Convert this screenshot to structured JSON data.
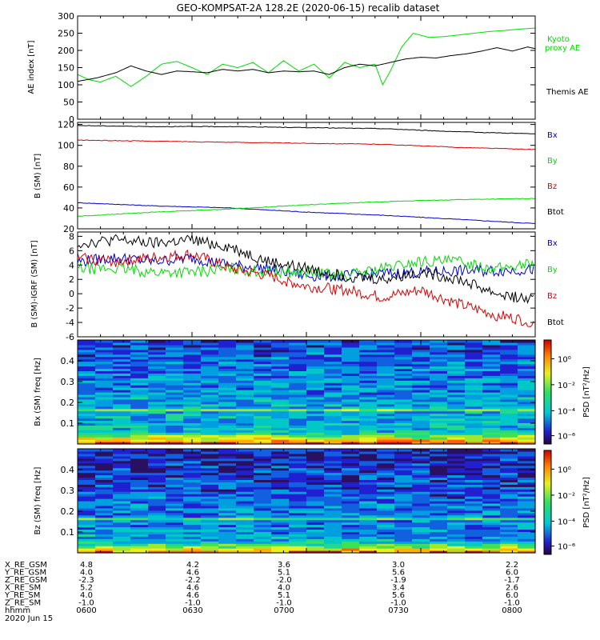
{
  "title": "GEO-KOMPSAT-2A 128.2E (2020-06-15) recalib dataset",
  "colors": {
    "black": "#000000",
    "green": "#00dd00",
    "blue": "#0000cc",
    "red": "#dd0000"
  },
  "chart_data": [
    {
      "type": "line",
      "panel": "ae",
      "ylabel": "AE index [nT]",
      "ylim": [
        0,
        300
      ],
      "yticks": [
        "0",
        "50",
        "100",
        "150",
        "200",
        "250",
        "300"
      ],
      "xlim_minutes": [
        0,
        120
      ],
      "series": [
        {
          "name": "Kyoto proxy AE",
          "color": "green",
          "x": [
            0,
            3,
            6,
            10,
            14,
            18,
            22,
            26,
            30,
            34,
            38,
            42,
            46,
            50,
            54,
            58,
            62,
            66,
            70,
            74,
            78,
            80,
            82,
            85,
            88,
            92,
            96,
            100,
            104,
            108,
            112,
            116,
            120
          ],
          "y": [
            130,
            115,
            108,
            125,
            95,
            125,
            160,
            168,
            150,
            130,
            160,
            150,
            165,
            135,
            170,
            140,
            160,
            120,
            165,
            150,
            160,
            100,
            140,
            210,
            250,
            238,
            240,
            245,
            250,
            255,
            258,
            262,
            265
          ]
        },
        {
          "name": "Themis AE",
          "color": "black",
          "x": [
            0,
            5,
            10,
            14,
            18,
            22,
            26,
            30,
            34,
            38,
            42,
            46,
            50,
            54,
            58,
            62,
            66,
            70,
            74,
            78,
            82,
            86,
            90,
            94,
            98,
            102,
            106,
            110,
            114,
            118,
            120
          ],
          "y": [
            110,
            120,
            135,
            155,
            140,
            130,
            140,
            138,
            135,
            145,
            140,
            145,
            135,
            140,
            138,
            140,
            130,
            150,
            160,
            155,
            165,
            175,
            180,
            178,
            185,
            190,
            198,
            208,
            198,
            210,
            205
          ]
        }
      ]
    },
    {
      "type": "line",
      "panel": "b",
      "ylabel": "B (SM) [nT]",
      "ylim": [
        20,
        122
      ],
      "yticks": [
        "20",
        "40",
        "60",
        "80",
        "100",
        "120"
      ],
      "xlim_minutes": [
        0,
        120
      ],
      "series": [
        {
          "name": "Bx",
          "color": "blue",
          "x": [
            0,
            20,
            40,
            60,
            80,
            100,
            120
          ],
          "y": [
            45,
            42,
            40,
            36,
            33,
            29,
            25
          ]
        },
        {
          "name": "By",
          "color": "green",
          "x": [
            0,
            20,
            40,
            60,
            80,
            100,
            120
          ],
          "y": [
            32,
            36,
            39,
            43,
            46,
            48,
            49
          ]
        },
        {
          "name": "Bz",
          "color": "red",
          "x": [
            0,
            20,
            40,
            60,
            80,
            100,
            120
          ],
          "y": [
            105,
            104,
            103,
            102,
            101,
            98,
            96
          ]
        },
        {
          "name": "Btot",
          "color": "black",
          "x": [
            0,
            20,
            40,
            60,
            80,
            100,
            120
          ],
          "y": [
            119,
            118,
            118,
            117,
            116,
            113,
            111
          ]
        }
      ]
    },
    {
      "type": "line",
      "panel": "dB",
      "ylabel": "B (SM)-IGRF (SM) [nT]",
      "ylim": [
        -6,
        8.6
      ],
      "yticks": [
        "8",
        "6",
        "4",
        "2",
        "0",
        "-2",
        "-4",
        "-6"
      ],
      "xlim_minutes": [
        0,
        120
      ],
      "series": [
        {
          "name": "Bx",
          "color": "blue",
          "x": [
            0,
            10,
            20,
            30,
            40,
            50,
            60,
            70,
            80,
            90,
            100,
            110,
            120
          ],
          "y": [
            4.5,
            5.0,
            4.5,
            5.0,
            4.0,
            3.5,
            2.5,
            2.5,
            2.8,
            3.0,
            3.2,
            3.2,
            3.4
          ]
        },
        {
          "name": "By",
          "color": "green",
          "x": [
            0,
            10,
            20,
            30,
            40,
            50,
            60,
            70,
            80,
            90,
            100,
            110,
            120
          ],
          "y": [
            3.5,
            3.5,
            3.0,
            3.0,
            3.5,
            3.0,
            3.0,
            2.5,
            3.5,
            4.5,
            4.5,
            3.5,
            4.3
          ]
        },
        {
          "name": "Bz",
          "color": "red",
          "x": [
            0,
            10,
            20,
            30,
            40,
            50,
            60,
            70,
            80,
            90,
            100,
            110,
            120
          ],
          "y": [
            5.0,
            4.5,
            5.0,
            5.5,
            3.5,
            2.5,
            1.0,
            0.5,
            -0.5,
            0.5,
            -1.5,
            -3.0,
            -4.0
          ]
        },
        {
          "name": "Btot",
          "color": "black",
          "x": [
            0,
            10,
            20,
            30,
            40,
            50,
            60,
            70,
            80,
            90,
            100,
            110,
            120
          ],
          "y": [
            7.0,
            7.5,
            7.0,
            7.5,
            6.5,
            4.5,
            3.5,
            2.5,
            2.0,
            3.0,
            2.0,
            0.0,
            -1.0
          ]
        }
      ]
    },
    {
      "type": "heatmap",
      "panel": "bxspec",
      "ylabel": "Bx (SM) freq [Hz]",
      "ylim": [
        0,
        0.5
      ],
      "yticks": [
        "0.1",
        "0.2",
        "0.3",
        "0.4"
      ],
      "colorbar_label": "PSD [nT²/Hz]",
      "colorbar_ticks": [
        "10⁰",
        "10⁻²",
        "10⁻⁴",
        "10⁻⁶"
      ]
    },
    {
      "type": "heatmap",
      "panel": "bzspec",
      "ylabel": "Bz (SM) freq [Hz]",
      "ylim": [
        0,
        0.5
      ],
      "yticks": [
        "0.1",
        "0.2",
        "0.3",
        "0.4"
      ],
      "colorbar_label": "PSD [nT²/Hz]",
      "colorbar_ticks": [
        "10⁰",
        "10⁻²",
        "10⁻⁴",
        "10⁻⁶"
      ]
    }
  ],
  "legends": {
    "ae": [
      {
        "text": "Kyoto",
        "color": "green"
      },
      {
        "text": "proxy AE",
        "color": "green"
      },
      {
        "text": "Themis AE",
        "color": "black"
      }
    ],
    "b": [
      {
        "text": "Bx",
        "color": "blue"
      },
      {
        "text": "By",
        "color": "green"
      },
      {
        "text": "Bz",
        "color": "red"
      },
      {
        "text": "Btot",
        "color": "black"
      }
    ],
    "dB": [
      {
        "text": "Bx",
        "color": "blue"
      },
      {
        "text": "By",
        "color": "green"
      },
      {
        "text": "Bz",
        "color": "red"
      },
      {
        "text": "Btot",
        "color": "black"
      }
    ]
  },
  "ephemeris": {
    "rows": [
      {
        "label": "X_RE_GSM",
        "values": [
          "4.8",
          "4.2",
          "3.6",
          "3.0",
          "2.2"
        ]
      },
      {
        "label": "Y_RE_GSM",
        "values": [
          "4.0",
          "4.6",
          "5.1",
          "5.6",
          "6.0"
        ]
      },
      {
        "label": "Z_RE_GSM",
        "values": [
          "-2.3",
          "-2.2",
          "-2.0",
          "-1.9",
          "-1.7"
        ]
      },
      {
        "label": "X_RE_SM",
        "values": [
          "5.2",
          "4.6",
          "4.0",
          "3.4",
          "2.6"
        ]
      },
      {
        "label": "Y_RE_SM",
        "values": [
          "4.0",
          "4.6",
          "5.1",
          "5.6",
          "6.0"
        ]
      },
      {
        "label": "Z_RE_SM",
        "values": [
          "-1.0",
          "-1.0",
          "-1.0",
          "-1.0",
          "-1.0"
        ]
      },
      {
        "label": "hhmm",
        "values": [
          "0600",
          "0630",
          "0700",
          "0730",
          "0800"
        ]
      }
    ],
    "date": "2020 Jun 15"
  }
}
